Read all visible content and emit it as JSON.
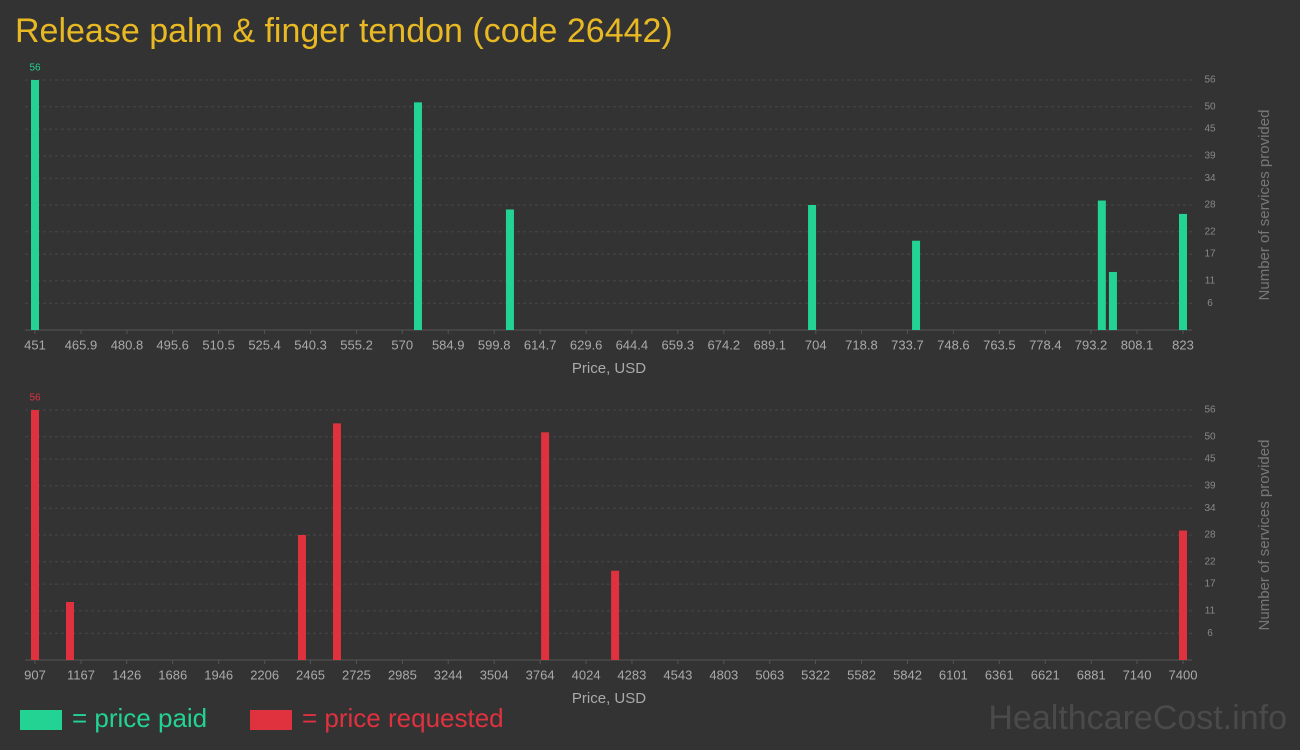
{
  "title": "Release palm & finger tendon (code 26442)",
  "watermark": "HealthcareCost.info",
  "chart_data": [
    {
      "type": "bar",
      "xlabel": "Price, USD",
      "ylabel": "Number of services provided",
      "x": [
        451,
        575.1,
        604.9,
        702.8,
        736.5,
        796.7,
        800.3,
        823
      ],
      "series": [
        {
          "name": "= price paid",
          "color": "#22d393",
          "values": [
            56,
            51,
            27,
            28,
            20,
            29,
            13,
            26
          ]
        }
      ],
      "xlim": [
        451,
        823
      ],
      "xticks": [
        451,
        465.9,
        480.8,
        495.6,
        510.5,
        525.4,
        540.3,
        555.2,
        570,
        584.9,
        599.8,
        614.7,
        629.6,
        644.4,
        659.3,
        674.2,
        689.1,
        704,
        718.8,
        733.7,
        748.6,
        763.5,
        778.4,
        793.2,
        808.1,
        823
      ],
      "ylim": [
        0,
        56
      ],
      "yticks": [
        6,
        11,
        17,
        22,
        28,
        34,
        39,
        45,
        50,
        56
      ],
      "grid": true
    },
    {
      "type": "bar",
      "xlabel": "Price, USD",
      "ylabel": "Number of services provided",
      "x": [
        907,
        1105,
        2417,
        2615,
        3792,
        4188,
        7400
      ],
      "series": [
        {
          "name": "= price requested",
          "color": "#e0313f",
          "values": [
            56,
            13,
            28,
            53,
            51,
            20,
            29
          ]
        }
      ],
      "xlim": [
        907,
        7400
      ],
      "xticks": [
        907,
        1167,
        1426,
        1686,
        1946,
        2206,
        2465,
        2725,
        2985,
        3244,
        3504,
        3764,
        4024,
        4283,
        4543,
        4803,
        5063,
        5322,
        5582,
        5842,
        6101,
        6361,
        6621,
        6881,
        7140,
        7400
      ],
      "ylim": [
        0,
        56
      ],
      "yticks": [
        6,
        11,
        17,
        22,
        28,
        34,
        39,
        45,
        50,
        56
      ],
      "grid": true
    }
  ]
}
